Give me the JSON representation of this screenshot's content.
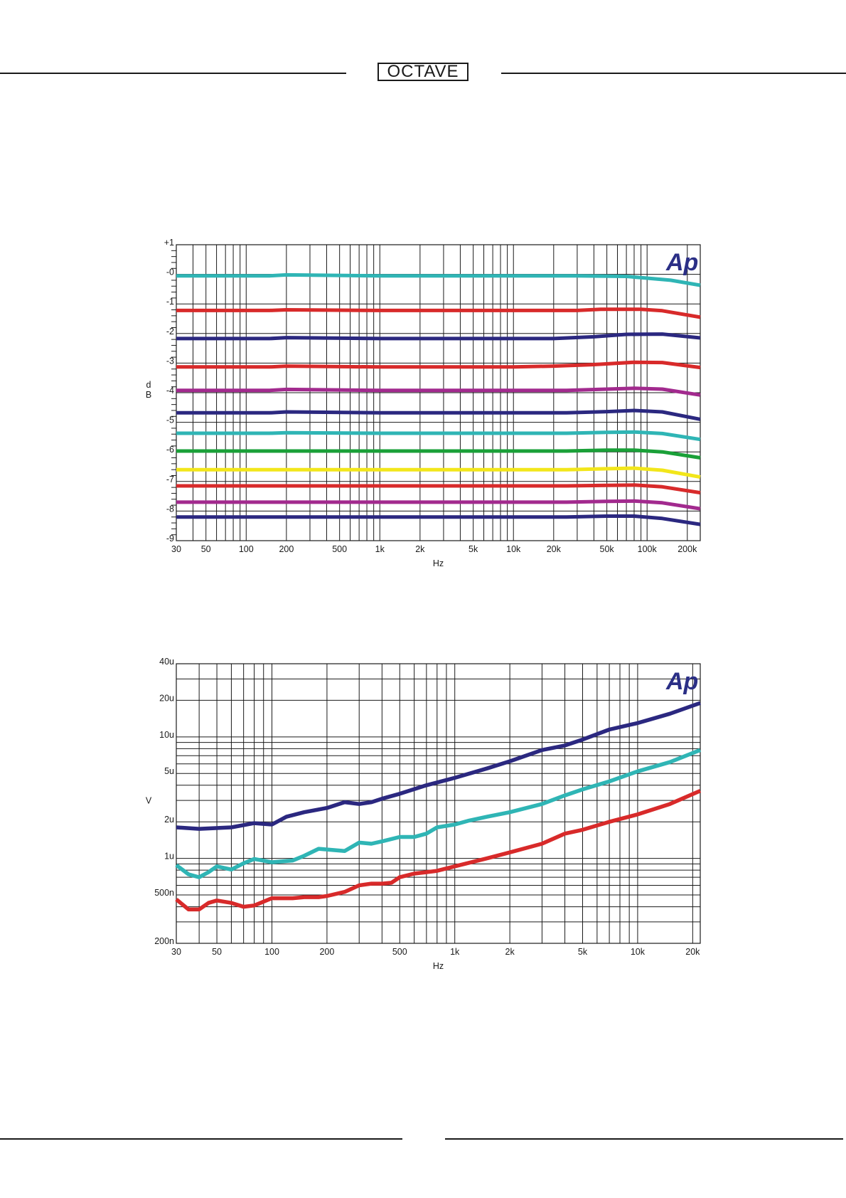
{
  "header": {
    "logo_text": "OCTAVE"
  },
  "colors": {
    "navy": "#2b2880",
    "cyan": "#2fb5b5",
    "red": "#d82a2a",
    "magenta": "#a22a8e",
    "green": "#1aa038",
    "yellow": "#f2e61a",
    "grid": "#1a1a1a",
    "ap_logo": "#2b2f86"
  },
  "chart_data": [
    {
      "type": "line",
      "title": "",
      "xlabel": "Hz",
      "ylabel": "d\nB",
      "xscale": "log",
      "xlim": [
        30,
        250000
      ],
      "ylim": [
        -9,
        1
      ],
      "x_ticks": [
        {
          "value": 30,
          "label": "30"
        },
        {
          "value": 50,
          "label": "50"
        },
        {
          "value": 100,
          "label": "100"
        },
        {
          "value": 200,
          "label": "200"
        },
        {
          "value": 500,
          "label": "500"
        },
        {
          "value": 1000,
          "label": "1k"
        },
        {
          "value": 2000,
          "label": "2k"
        },
        {
          "value": 5000,
          "label": "5k"
        },
        {
          "value": 10000,
          "label": "10k"
        },
        {
          "value": 20000,
          "label": "20k"
        },
        {
          "value": 50000,
          "label": "50k"
        },
        {
          "value": 100000,
          "label": "100k"
        },
        {
          "value": 200000,
          "label": "200k"
        }
      ],
      "y_ticks": [
        {
          "value": 1,
          "label": "+1"
        },
        {
          "value": 0,
          "label": "-0"
        },
        {
          "value": -1,
          "label": "-1"
        },
        {
          "value": -2,
          "label": "-2"
        },
        {
          "value": -3,
          "label": "-3"
        },
        {
          "value": -4,
          "label": "-4"
        },
        {
          "value": -5,
          "label": "-5"
        },
        {
          "value": -6,
          "label": "-6"
        },
        {
          "value": -7,
          "label": "-7"
        },
        {
          "value": -8,
          "label": "-8"
        },
        {
          "value": -9,
          "label": "-9"
        }
      ],
      "watermark": "Ap",
      "series": [
        {
          "name": "trace-1",
          "color": "#2fb5b5",
          "x": [
            30,
            150,
            200,
            1000,
            10000,
            30000,
            70000,
            100000,
            150000,
            250000
          ],
          "values": [
            -0.05,
            -0.05,
            -0.02,
            -0.05,
            -0.05,
            -0.05,
            -0.07,
            -0.13,
            -0.2,
            -0.37
          ]
        },
        {
          "name": "trace-2",
          "color": "#d82a2a",
          "x": [
            30,
            150,
            200,
            1000,
            10000,
            30000,
            45000,
            90000,
            130000,
            250000
          ],
          "values": [
            -1.22,
            -1.22,
            -1.2,
            -1.22,
            -1.22,
            -1.22,
            -1.18,
            -1.18,
            -1.23,
            -1.45
          ]
        },
        {
          "name": "trace-3",
          "color": "#2b2880",
          "x": [
            30,
            150,
            200,
            1000,
            10000,
            20000,
            40000,
            70000,
            130000,
            250000
          ],
          "values": [
            -2.17,
            -2.17,
            -2.14,
            -2.17,
            -2.17,
            -2.17,
            -2.11,
            -2.03,
            -2.02,
            -2.15
          ]
        },
        {
          "name": "trace-4",
          "color": "#d82a2a",
          "x": [
            30,
            150,
            200,
            1000,
            10000,
            20000,
            40000,
            80000,
            130000,
            250000
          ],
          "values": [
            -3.13,
            -3.13,
            -3.1,
            -3.13,
            -3.13,
            -3.1,
            -3.05,
            -2.97,
            -2.98,
            -3.15
          ]
        },
        {
          "name": "trace-5",
          "color": "#a22a8e",
          "x": [
            30,
            150,
            200,
            1000,
            10000,
            25000,
            50000,
            80000,
            130000,
            250000
          ],
          "values": [
            -3.92,
            -3.92,
            -3.89,
            -3.92,
            -3.92,
            -3.92,
            -3.88,
            -3.85,
            -3.88,
            -4.08
          ]
        },
        {
          "name": "trace-6",
          "color": "#2b2880",
          "x": [
            30,
            150,
            200,
            1000,
            10000,
            25000,
            50000,
            80000,
            130000,
            250000
          ],
          "values": [
            -4.68,
            -4.68,
            -4.65,
            -4.68,
            -4.68,
            -4.68,
            -4.64,
            -4.6,
            -4.65,
            -4.9
          ]
        },
        {
          "name": "trace-7",
          "color": "#2fb5b5",
          "x": [
            30,
            150,
            200,
            1000,
            10000,
            25000,
            50000,
            80000,
            130000,
            250000
          ],
          "values": [
            -5.37,
            -5.37,
            -5.35,
            -5.37,
            -5.37,
            -5.37,
            -5.34,
            -5.33,
            -5.38,
            -5.58
          ]
        },
        {
          "name": "trace-8",
          "color": "#1aa038",
          "x": [
            30,
            1000,
            10000,
            25000,
            50000,
            80000,
            130000,
            250000
          ],
          "values": [
            -5.97,
            -5.97,
            -5.97,
            -5.97,
            -5.94,
            -5.94,
            -6.0,
            -6.2
          ]
        },
        {
          "name": "trace-9",
          "color": "#f2e61a",
          "x": [
            30,
            1000,
            10000,
            25000,
            50000,
            80000,
            130000,
            250000
          ],
          "values": [
            -6.6,
            -6.6,
            -6.6,
            -6.6,
            -6.57,
            -6.55,
            -6.62,
            -6.85
          ]
        },
        {
          "name": "trace-10",
          "color": "#d82a2a",
          "x": [
            30,
            1000,
            10000,
            25000,
            50000,
            80000,
            130000,
            250000
          ],
          "values": [
            -7.15,
            -7.15,
            -7.15,
            -7.15,
            -7.13,
            -7.12,
            -7.18,
            -7.38
          ]
        },
        {
          "name": "trace-11",
          "color": "#a22a8e",
          "x": [
            30,
            1000,
            10000,
            25000,
            50000,
            80000,
            130000,
            250000
          ],
          "values": [
            -7.7,
            -7.7,
            -7.7,
            -7.7,
            -7.67,
            -7.66,
            -7.72,
            -7.92
          ]
        },
        {
          "name": "trace-12",
          "color": "#2b2880",
          "x": [
            30,
            1000,
            10000,
            25000,
            50000,
            80000,
            130000,
            250000
          ],
          "values": [
            -8.2,
            -8.2,
            -8.2,
            -8.2,
            -8.17,
            -8.17,
            -8.25,
            -8.45
          ]
        }
      ]
    },
    {
      "type": "line",
      "title": "",
      "xlabel": "Hz",
      "ylabel": "V",
      "xscale": "log",
      "yscale": "log",
      "xlim": [
        30,
        22000
      ],
      "ylim": [
        2e-07,
        4e-05
      ],
      "x_ticks": [
        {
          "value": 30,
          "label": "30"
        },
        {
          "value": 50,
          "label": "50"
        },
        {
          "value": 100,
          "label": "100"
        },
        {
          "value": 200,
          "label": "200"
        },
        {
          "value": 500,
          "label": "500"
        },
        {
          "value": 1000,
          "label": "1k"
        },
        {
          "value": 2000,
          "label": "2k"
        },
        {
          "value": 5000,
          "label": "5k"
        },
        {
          "value": 10000,
          "label": "10k"
        },
        {
          "value": 20000,
          "label": "20k"
        }
      ],
      "y_ticks": [
        {
          "value": 4e-05,
          "label": "40u"
        },
        {
          "value": 2e-05,
          "label": "20u"
        },
        {
          "value": 1e-05,
          "label": "10u"
        },
        {
          "value": 5e-06,
          "label": "5u"
        },
        {
          "value": 2e-06,
          "label": "2u"
        },
        {
          "value": 1e-06,
          "label": "1u"
        },
        {
          "value": 5e-07,
          "label": "500n"
        },
        {
          "value": 2e-07,
          "label": "200n"
        }
      ],
      "watermark": "Ap",
      "series": [
        {
          "name": "trace-navy",
          "color": "#2b2880",
          "x": [
            30,
            40,
            60,
            80,
            100,
            120,
            150,
            200,
            250,
            300,
            350,
            400,
            500,
            700,
            1000,
            1500,
            2000,
            3000,
            4000,
            5000,
            7000,
            10000,
            15000,
            22000
          ],
          "values": [
            1.8e-06,
            1.75e-06,
            1.8e-06,
            1.95e-06,
            1.9e-06,
            2.2e-06,
            2.4e-06,
            2.6e-06,
            2.9e-06,
            2.8e-06,
            2.9e-06,
            3.1e-06,
            3.4e-06,
            4e-06,
            4.6e-06,
            5.5e-06,
            6.3e-06,
            7.8e-06,
            8.5e-06,
            9.5e-06,
            1.15e-05,
            1.3e-05,
            1.55e-05,
            1.9e-05
          ]
        },
        {
          "name": "trace-cyan",
          "color": "#2fb5b5",
          "x": [
            30,
            35,
            40,
            45,
            50,
            60,
            70,
            80,
            100,
            130,
            150,
            180,
            250,
            300,
            350,
            400,
            500,
            600,
            700,
            800,
            1000,
            1200,
            1500,
            2000,
            3000,
            4000,
            5000,
            7000,
            10000,
            15000,
            22000
          ],
          "values": [
            8.8e-07,
            7.4e-07,
            7e-07,
            7.7e-07,
            8.6e-07,
            8.1e-07,
            9.1e-07,
            9.9e-07,
            9.3e-07,
            9.6e-07,
            1.05e-06,
            1.2e-06,
            1.15e-06,
            1.35e-06,
            1.32e-06,
            1.38e-06,
            1.5e-06,
            1.5e-06,
            1.6e-06,
            1.8e-06,
            1.9e-06,
            2.05e-06,
            2.2e-06,
            2.4e-06,
            2.8e-06,
            3.3e-06,
            3.7e-06,
            4.3e-06,
            5.2e-06,
            6.2e-06,
            7.8e-06
          ]
        },
        {
          "name": "trace-red",
          "color": "#d82a2a",
          "x": [
            30,
            35,
            40,
            45,
            50,
            60,
            70,
            80,
            100,
            130,
            150,
            180,
            200,
            250,
            300,
            350,
            400,
            450,
            500,
            600,
            700,
            800,
            1000,
            1500,
            2000,
            3000,
            4000,
            5000,
            7000,
            10000,
            15000,
            22000
          ],
          "values": [
            4.6e-07,
            3.8e-07,
            3.8e-07,
            4.3e-07,
            4.5e-07,
            4.3e-07,
            4e-07,
            4.1e-07,
            4.7e-07,
            4.7e-07,
            4.8e-07,
            4.8e-07,
            4.9e-07,
            5.3e-07,
            6e-07,
            6.2e-07,
            6.2e-07,
            6.3e-07,
            7e-07,
            7.5e-07,
            7.7e-07,
            7.9e-07,
            8.6e-07,
            1e-06,
            1.12e-06,
            1.32e-06,
            1.6e-06,
            1.72e-06,
            2e-06,
            2.3e-06,
            2.8e-06,
            3.6e-06
          ]
        }
      ]
    }
  ]
}
